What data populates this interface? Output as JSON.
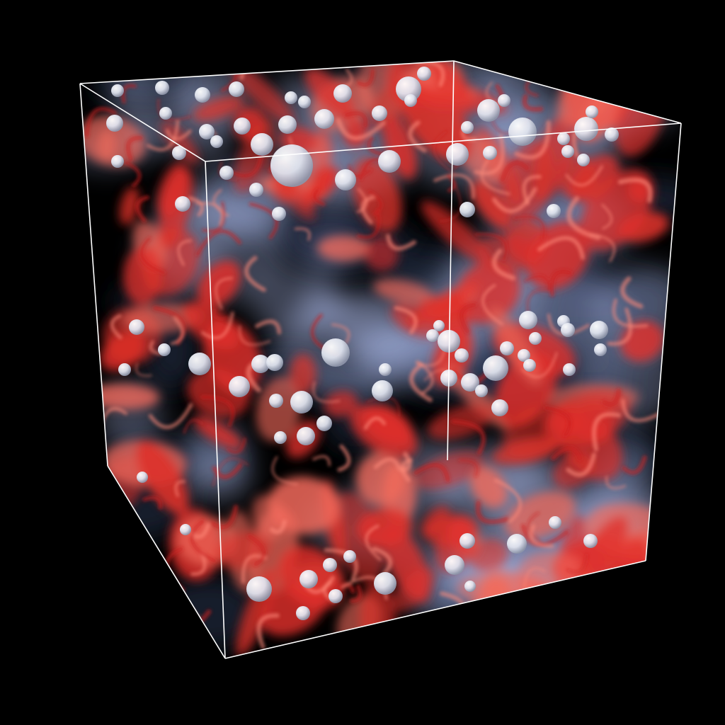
{
  "scene": {
    "background_color": "#000000",
    "box_edge_color": "#ffffff",
    "volume_colors": {
      "vortex": "#e0302a",
      "vortex_light": "#f26a5c",
      "mist": "#a9b8e6",
      "dark_flow": "#2a3550"
    },
    "sphere_color": "#eef0f6"
  }
}
